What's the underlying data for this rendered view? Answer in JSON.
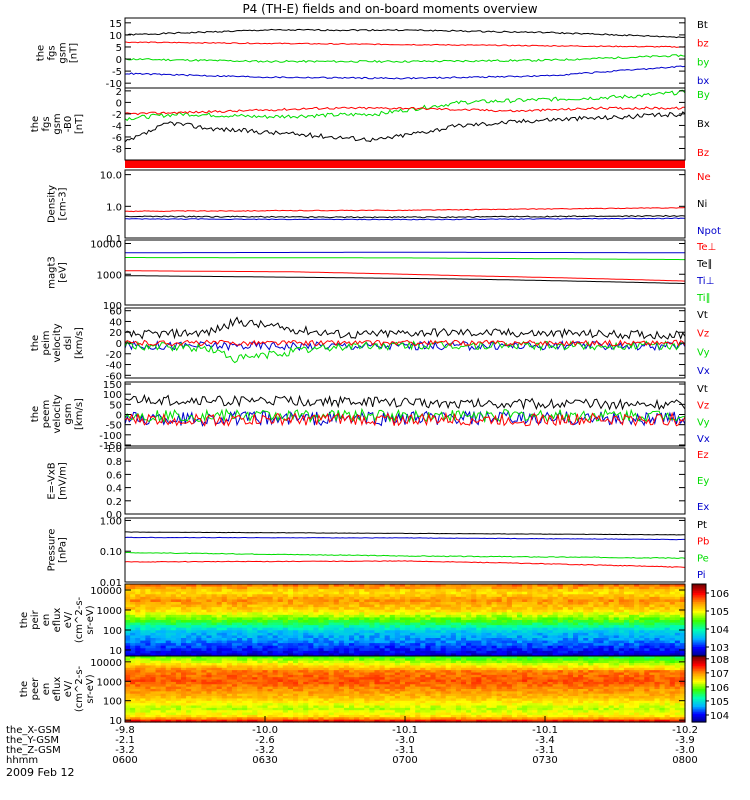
{
  "title": "P4 (TH-E) fields and on-board moments overview",
  "date": "2009 Feb 12",
  "time_axis": {
    "ticks": [
      "0600",
      "0630",
      "0700",
      "0730",
      "0800"
    ],
    "rows": [
      {
        "label": "the_X-GSM",
        "values": [
          "-9.8",
          "-10.0",
          "-10.1",
          "-10.1",
          "-10.2"
        ]
      },
      {
        "label": "the_Y-GSM",
        "values": [
          "-2.1",
          "-2.6",
          "-3.0",
          "-3.4",
          "-3.9"
        ]
      },
      {
        "label": "the_Z-GSM",
        "values": [
          "-3.2",
          "-3.2",
          "-3.1",
          "-3.1",
          "-3.0"
        ]
      },
      {
        "label": "hhmm",
        "values": []
      }
    ]
  },
  "colors": {
    "black": "#000000",
    "red": "#ff0000",
    "green": "#00dd00",
    "blue": "#0000cc"
  },
  "chart_data": [
    {
      "type": "line",
      "ylabel": [
        "the",
        "fgs",
        "gsm",
        "[nT]"
      ],
      "ylim": [
        -12,
        17
      ],
      "yticks": [
        "15",
        "10",
        "5",
        "0",
        "-5",
        "-10"
      ],
      "tick_values": [
        15,
        10,
        5,
        0,
        -5,
        -10
      ],
      "legend": [
        "Bt",
        "bz",
        "by",
        "bx"
      ],
      "series": [
        {
          "name": "Bt",
          "color": "#000000",
          "x": [
            0,
            0.25,
            0.5,
            0.75,
            1
          ],
          "values": [
            10,
            12,
            12,
            11,
            9
          ],
          "noise": 0.3
        },
        {
          "name": "bz",
          "color": "#ff0000",
          "x": [
            0,
            0.5,
            1
          ],
          "values": [
            7,
            6,
            5
          ],
          "noise": 0.2
        },
        {
          "name": "by",
          "color": "#00dd00",
          "x": [
            0,
            0.25,
            0.5,
            0.75,
            1
          ],
          "values": [
            0,
            -1,
            -1,
            -0.5,
            1.5
          ],
          "noise": 0.4
        },
        {
          "name": "bx",
          "color": "#0000cc",
          "x": [
            0,
            0.25,
            0.5,
            0.75,
            1
          ],
          "values": [
            -6,
            -7.5,
            -8,
            -7,
            -3
          ],
          "noise": 0.3
        }
      ]
    },
    {
      "type": "line",
      "ylabel": [
        "the",
        "fgs",
        "gsm",
        "-B0",
        "[nT]"
      ],
      "ylim": [
        -10,
        2.5
      ],
      "yticks": [
        "2",
        "0",
        "-2",
        "-4",
        "-6",
        "-8"
      ],
      "tick_values": [
        2,
        0,
        -2,
        -4,
        -6,
        -8
      ],
      "legend": [
        "By",
        "Bx",
        "Bz"
      ],
      "series": [
        {
          "name": "By",
          "color": "#00dd00",
          "x": [
            0,
            0.1,
            0.25,
            0.45,
            0.6,
            0.75,
            0.9,
            1
          ],
          "values": [
            -2.8,
            -2,
            -2.5,
            -2,
            0,
            0.5,
            1,
            1.8
          ],
          "noise": 0.35
        },
        {
          "name": "Bx",
          "color": "#000000",
          "x": [
            0,
            0.08,
            0.15,
            0.3,
            0.45,
            0.6,
            0.75,
            0.9,
            1
          ],
          "values": [
            -7,
            -3.5,
            -4.5,
            -5.5,
            -6.5,
            -4,
            -3,
            -2.5,
            -2
          ],
          "noise": 0.4
        },
        {
          "name": "Bz",
          "color": "#ff0000",
          "x": [
            0,
            0.2,
            0.35,
            0.5,
            0.7,
            0.85,
            1
          ],
          "values": [
            -2,
            -1.5,
            -1,
            -1,
            -1.5,
            -1,
            -1
          ],
          "noise": 0.2
        }
      ]
    },
    {
      "type": "line",
      "scale": "log",
      "ylabel": [
        "Density",
        "[cm-3]"
      ],
      "ylim": [
        0.1,
        14
      ],
      "yticks": [
        "10.0",
        "1.0",
        "0.1"
      ],
      "tick_values": [
        10,
        1,
        0.1
      ],
      "legend": [
        "Ne",
        "Ni",
        "Npot"
      ],
      "series": [
        {
          "name": "Ne",
          "color": "#ff0000",
          "x": [
            0,
            0.5,
            1
          ],
          "values": [
            0.7,
            0.75,
            0.9
          ],
          "noise": 0.02
        },
        {
          "name": "Ni",
          "color": "#000000",
          "x": [
            0,
            0.5,
            1
          ],
          "values": [
            0.48,
            0.45,
            0.5
          ],
          "noise": 0.02
        },
        {
          "name": "Npot",
          "color": "#0000cc",
          "x": [
            0,
            0.5,
            1
          ],
          "values": [
            0.4,
            0.38,
            0.42
          ],
          "noise": 0.01
        }
      ]
    },
    {
      "type": "line",
      "scale": "log",
      "ylabel": [
        "magt3",
        "[eV]"
      ],
      "ylim": [
        100,
        13000
      ],
      "yticks": [
        "10000",
        "1000",
        "100"
      ],
      "tick_values": [
        10000,
        1000,
        100
      ],
      "legend": [
        "Te⊥",
        "Te∥",
        "Ti⊥",
        "Ti∥"
      ],
      "series": [
        {
          "name": "Ti⊥",
          "color": "#0000cc",
          "x": [
            0,
            0.5,
            1
          ],
          "values": [
            5000,
            5200,
            5000
          ],
          "noise": 0.01
        },
        {
          "name": "Ti∥",
          "color": "#00dd00",
          "x": [
            0,
            0.5,
            1
          ],
          "values": [
            3500,
            3400,
            3000
          ],
          "noise": 0.01
        },
        {
          "name": "Te⊥",
          "color": "#ff0000",
          "x": [
            0,
            0.3,
            0.6,
            1
          ],
          "values": [
            1300,
            1200,
            900,
            600
          ],
          "noise": 0.01
        },
        {
          "name": "Te∥",
          "color": "#000000",
          "x": [
            0,
            0.3,
            0.6,
            1
          ],
          "values": [
            900,
            800,
            700,
            500
          ],
          "noise": 0.01
        }
      ]
    },
    {
      "type": "line",
      "ylabel": [
        "the",
        "peim",
        "velocity",
        "dsl",
        "[km/s]"
      ],
      "ylim": [
        -65,
        65
      ],
      "yticks": [
        "60",
        "40",
        "20",
        "0",
        "-20",
        "-40",
        "-60"
      ],
      "tick_values": [
        60,
        40,
        20,
        0,
        -20,
        -40,
        -60
      ],
      "legend": [
        "Vt",
        "Vz",
        "Vy",
        "Vx"
      ],
      "series": [
        {
          "name": "Vx",
          "color": "#0000cc",
          "x": [
            0,
            1
          ],
          "values": [
            -5,
            -5
          ],
          "noise": 8
        },
        {
          "name": "Vy",
          "color": "#00dd00",
          "x": [
            0,
            0.15,
            0.2,
            0.3,
            0.4,
            1
          ],
          "values": [
            -5,
            -10,
            -30,
            -15,
            -5,
            -5
          ],
          "noise": 8
        },
        {
          "name": "Vz",
          "color": "#ff0000",
          "x": [
            0,
            1
          ],
          "values": [
            0,
            0
          ],
          "noise": 5
        },
        {
          "name": "Vt",
          "color": "#000000",
          "x": [
            0,
            0.15,
            0.2,
            0.3,
            0.4,
            0.55,
            1
          ],
          "values": [
            15,
            20,
            40,
            25,
            15,
            20,
            15
          ],
          "noise": 8
        }
      ]
    },
    {
      "type": "line",
      "ylabel": [
        "the",
        "peem",
        "velocity",
        "gsm",
        "[km/s]"
      ],
      "ylim": [
        -155,
        160
      ],
      "yticks": [
        "150",
        "100",
        "50",
        "0",
        "-50",
        "-100",
        "-150"
      ],
      "tick_values": [
        150,
        100,
        50,
        0,
        -50,
        -100,
        -150
      ],
      "legend": [
        "Vt",
        "Vz",
        "Vy",
        "Vx"
      ],
      "series": [
        {
          "name": "Vx",
          "color": "#0000cc",
          "x": [
            0,
            1
          ],
          "values": [
            -20,
            -20
          ],
          "noise": 35
        },
        {
          "name": "Vy",
          "color": "#00dd00",
          "x": [
            0,
            1
          ],
          "values": [
            -5,
            -5
          ],
          "noise": 30
        },
        {
          "name": "Vz",
          "color": "#ff0000",
          "x": [
            0,
            1
          ],
          "values": [
            -25,
            -25
          ],
          "noise": 30
        },
        {
          "name": "Vt",
          "color": "#000000",
          "x": [
            0,
            0.3,
            0.6,
            1
          ],
          "values": [
            70,
            65,
            55,
            50
          ],
          "noise": 25
        }
      ]
    },
    {
      "type": "line",
      "ylabel": [
        "E=-VxB",
        "[mV/m]"
      ],
      "ylim": [
        0,
        1
      ],
      "yticks": [
        "1.0",
        "0.8",
        "0.6",
        "0.4",
        "0.2",
        "0.0"
      ],
      "tick_values": [
        1,
        0.8,
        0.6,
        0.4,
        0.2,
        0
      ],
      "legend": [
        "Ez",
        "Ey",
        "Ex"
      ],
      "series": []
    },
    {
      "type": "line",
      "scale": "log",
      "ylabel": [
        "Pressure",
        "[nPa]"
      ],
      "ylim": [
        0.01,
        1.2
      ],
      "yticks": [
        "1.00",
        "0.10",
        "0.01"
      ],
      "tick_values": [
        1,
        0.1,
        0.01
      ],
      "legend": [
        "Pt",
        "Pb",
        "Pe",
        "Pi"
      ],
      "series": [
        {
          "name": "Pt",
          "color": "#000000",
          "x": [
            0,
            0.5,
            1
          ],
          "values": [
            0.42,
            0.38,
            0.34
          ],
          "noise": 0.005
        },
        {
          "name": "Pi",
          "color": "#0000cc",
          "x": [
            0,
            0.5,
            1
          ],
          "values": [
            0.28,
            0.27,
            0.24
          ],
          "noise": 0.004
        },
        {
          "name": "Pe",
          "color": "#00dd00",
          "x": [
            0,
            0.5,
            1
          ],
          "values": [
            0.09,
            0.07,
            0.06
          ],
          "noise": 0.002
        },
        {
          "name": "Pb",
          "color": "#ff0000",
          "x": [
            0,
            0.5,
            1
          ],
          "values": [
            0.045,
            0.048,
            0.03
          ],
          "noise": 0.001
        }
      ]
    },
    {
      "type": "heatmap",
      "ylabel": [
        "the",
        "peir",
        "en",
        "eflux",
        "eV/",
        "(cm^2-s-",
        "sr-eV)"
      ],
      "scale": "log",
      "ylim": [
        5,
        20000
      ],
      "yticks": [
        "10000",
        "1000",
        "100",
        "10"
      ],
      "tick_values": [
        10000,
        1000,
        100,
        10
      ],
      "colorbar": {
        "ticks": [
          "10^6",
          "10^5",
          "10^4",
          "10^3"
        ],
        "tick_values": [
          6,
          5,
          4,
          3
        ],
        "range": [
          2.5,
          6.5
        ]
      },
      "profile": [
        {
          "e": 5,
          "level": 2.8
        },
        {
          "e": 12,
          "level": 3.1
        },
        {
          "e": 30,
          "level": 3.4
        },
        {
          "e": 80,
          "level": 3.6
        },
        {
          "e": 300,
          "level": 4.5
        },
        {
          "e": 1000,
          "level": 5.2
        },
        {
          "e": 3000,
          "level": 5.5
        },
        {
          "e": 8000,
          "level": 5.1
        },
        {
          "e": 20000,
          "level": 5.7
        }
      ]
    },
    {
      "type": "heatmap",
      "ylabel": [
        "the",
        "peer",
        "en",
        "eflux",
        "eV/",
        "(cm^2-s-",
        "sr-eV)"
      ],
      "scale": "log",
      "ylim": [
        8,
        20000
      ],
      "yticks": [
        "10000",
        "1000",
        "100",
        "10"
      ],
      "tick_values": [
        10000,
        1000,
        100,
        10
      ],
      "colorbar": {
        "ticks": [
          "10^8",
          "10^7",
          "10^6",
          "10^5",
          "10^4"
        ],
        "tick_values": [
          8,
          7,
          6,
          5,
          4
        ],
        "range": [
          3.5,
          8.2
        ]
      },
      "profile": [
        {
          "e": 8,
          "level": 7.8
        },
        {
          "e": 15,
          "level": 6.6
        },
        {
          "e": 40,
          "level": 6.2
        },
        {
          "e": 150,
          "level": 6.8
        },
        {
          "e": 1000,
          "level": 7.3
        },
        {
          "e": 4000,
          "level": 7.1
        },
        {
          "e": 10000,
          "level": 6.4
        },
        {
          "e": 20000,
          "level": 5.9
        }
      ]
    }
  ]
}
